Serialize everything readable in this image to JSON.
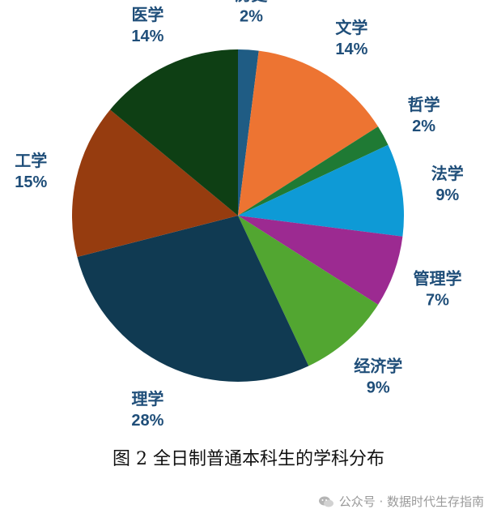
{
  "chart_data": {
    "type": "pie",
    "categories": [
      "历史",
      "文学",
      "哲学",
      "法学",
      "管理学",
      "经济学",
      "理学",
      "工学",
      "医学"
    ],
    "values": [
      2,
      14,
      2,
      9,
      7,
      9,
      28,
      15,
      14
    ],
    "value_labels": [
      "2%",
      "14%",
      "2%",
      "9%",
      "7%",
      "9%",
      "28%",
      "15%",
      "14%"
    ],
    "colors": [
      "#1f5c84",
      "#ed7432",
      "#1f7a34",
      "#0e9ad6",
      "#9c2a91",
      "#52a631",
      "#103a52",
      "#963c0f",
      "#0e3f14"
    ],
    "label_color": "#1f4e79"
  },
  "caption": "图 2   全日制普通本科生的学科分布",
  "footer": {
    "text": "公众号 · 数据时代生存指南",
    "icon": "wechat-icon"
  }
}
